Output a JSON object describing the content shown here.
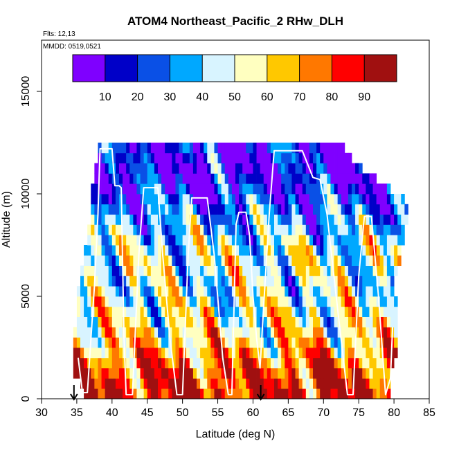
{
  "chart_data": {
    "type": "heatmap",
    "title": "ATOM4 Northeast_Pacific_2 RHw_DLH",
    "flights_label": "Flts: 12,13",
    "date_label": "MMDD: 0519,0521",
    "xlabel": "Latitude (deg N)",
    "ylabel": "Altitude (m)",
    "xlim": [
      30,
      85
    ],
    "ylim": [
      0,
      17500
    ],
    "x_ticks": [
      30,
      35,
      40,
      45,
      50,
      55,
      60,
      65,
      70,
      75,
      80,
      85
    ],
    "y_ticks": [
      0,
      5000,
      10000,
      15000
    ],
    "colorbar": {
      "range": [
        0,
        100
      ],
      "ticks": [
        10,
        20,
        30,
        40,
        50,
        60,
        70,
        80,
        90
      ],
      "colors": [
        "#7f00ff",
        "#0000c8",
        "#0a50e6",
        "#00a8ff",
        "#d8f4ff",
        "#ffffc0",
        "#ffc800",
        "#ff7800",
        "#ff0000",
        "#a01010"
      ]
    },
    "grid": false,
    "markers_lat": [
      34.6,
      61.1
    ],
    "rh_profile_by_altitude": [
      {
        "alt_m": 500,
        "rh_pct": 88
      },
      {
        "alt_m": 1500,
        "rh_pct": 80
      },
      {
        "alt_m": 2500,
        "rh_pct": 65
      },
      {
        "alt_m": 3500,
        "rh_pct": 55
      },
      {
        "alt_m": 4500,
        "rh_pct": 50
      },
      {
        "alt_m": 5500,
        "rh_pct": 45
      },
      {
        "alt_m": 6500,
        "rh_pct": 50
      },
      {
        "alt_m": 7500,
        "rh_pct": 45
      },
      {
        "alt_m": 8500,
        "rh_pct": 35
      },
      {
        "alt_m": 9500,
        "rh_pct": 25
      },
      {
        "alt_m": 10500,
        "rh_pct": 15
      },
      {
        "alt_m": 11500,
        "rh_pct": 10
      },
      {
        "alt_m": 12200,
        "rh_pct": 15
      }
    ],
    "coverage_by_altitude": [
      {
        "alt_m": 500,
        "lat_min": 36.0,
        "lat_max": 79.5
      },
      {
        "alt_m": 1500,
        "lat_min": 34.5,
        "lat_max": 79.5
      },
      {
        "alt_m": 2500,
        "lat_min": 34.5,
        "lat_max": 80.5
      },
      {
        "alt_m": 3500,
        "lat_min": 35.0,
        "lat_max": 80.5
      },
      {
        "alt_m": 4500,
        "lat_min": 35.0,
        "lat_max": 80.5
      },
      {
        "alt_m": 5500,
        "lat_min": 35.5,
        "lat_max": 79.5
      },
      {
        "alt_m": 6500,
        "lat_min": 36.0,
        "lat_max": 80.5
      },
      {
        "alt_m": 7500,
        "lat_min": 36.5,
        "lat_max": 81.0
      },
      {
        "alt_m": 8500,
        "lat_min": 37.0,
        "lat_max": 81.5
      },
      {
        "alt_m": 9500,
        "lat_min": 37.0,
        "lat_max": 82.0
      },
      {
        "alt_m": 10500,
        "lat_min": 37.5,
        "lat_max": 78.5
      },
      {
        "alt_m": 11500,
        "lat_min": 38.0,
        "lat_max": 74.5
      },
      {
        "alt_m": 12200,
        "lat_min": 38.0,
        "lat_max": 73.0
      }
    ],
    "flight_track": [
      [
        35.2,
        2000
      ],
      [
        35.8,
        300
      ],
      [
        36.5,
        300
      ],
      [
        37.5,
        5500
      ],
      [
        38.0,
        9000
      ],
      [
        38.3,
        12200
      ],
      [
        40.0,
        12200
      ],
      [
        40.4,
        10400
      ],
      [
        41.0,
        10400
      ],
      [
        41.3,
        10300
      ],
      [
        41.7,
        3000
      ],
      [
        42.0,
        200
      ],
      [
        42.9,
        200
      ],
      [
        43.8,
        7000
      ],
      [
        44.5,
        10300
      ],
      [
        46.5,
        10300
      ],
      [
        47.2,
        7000
      ],
      [
        48.2,
        3000
      ],
      [
        49.2,
        200
      ],
      [
        50.0,
        200
      ],
      [
        50.8,
        7000
      ],
      [
        51.3,
        9800
      ],
      [
        53.5,
        9800
      ],
      [
        54.5,
        7000
      ],
      [
        55.7,
        2000
      ],
      [
        56.5,
        200
      ],
      [
        57.0,
        200
      ],
      [
        57.6,
        8500
      ],
      [
        58.0,
        9100
      ],
      [
        59.0,
        9100
      ],
      [
        59.5,
        8000
      ],
      [
        60.0,
        5000
      ],
      [
        60.5,
        3000
      ],
      [
        61.0,
        1500
      ],
      [
        61.6,
        5000
      ],
      [
        62.3,
        9000
      ],
      [
        63.0,
        12100
      ],
      [
        67.0,
        12100
      ],
      [
        68.5,
        10800
      ],
      [
        69.5,
        10700
      ],
      [
        70.5,
        9000
      ],
      [
        71.8,
        5000
      ],
      [
        73.4,
        200
      ],
      [
        74.2,
        200
      ],
      [
        75.0,
        6000
      ],
      [
        75.8,
        8900
      ],
      [
        76.8,
        8900
      ],
      [
        77.8,
        5000
      ],
      [
        78.8,
        200
      ],
      [
        79.5,
        1000
      ],
      [
        79.8,
        3500
      ]
    ]
  }
}
